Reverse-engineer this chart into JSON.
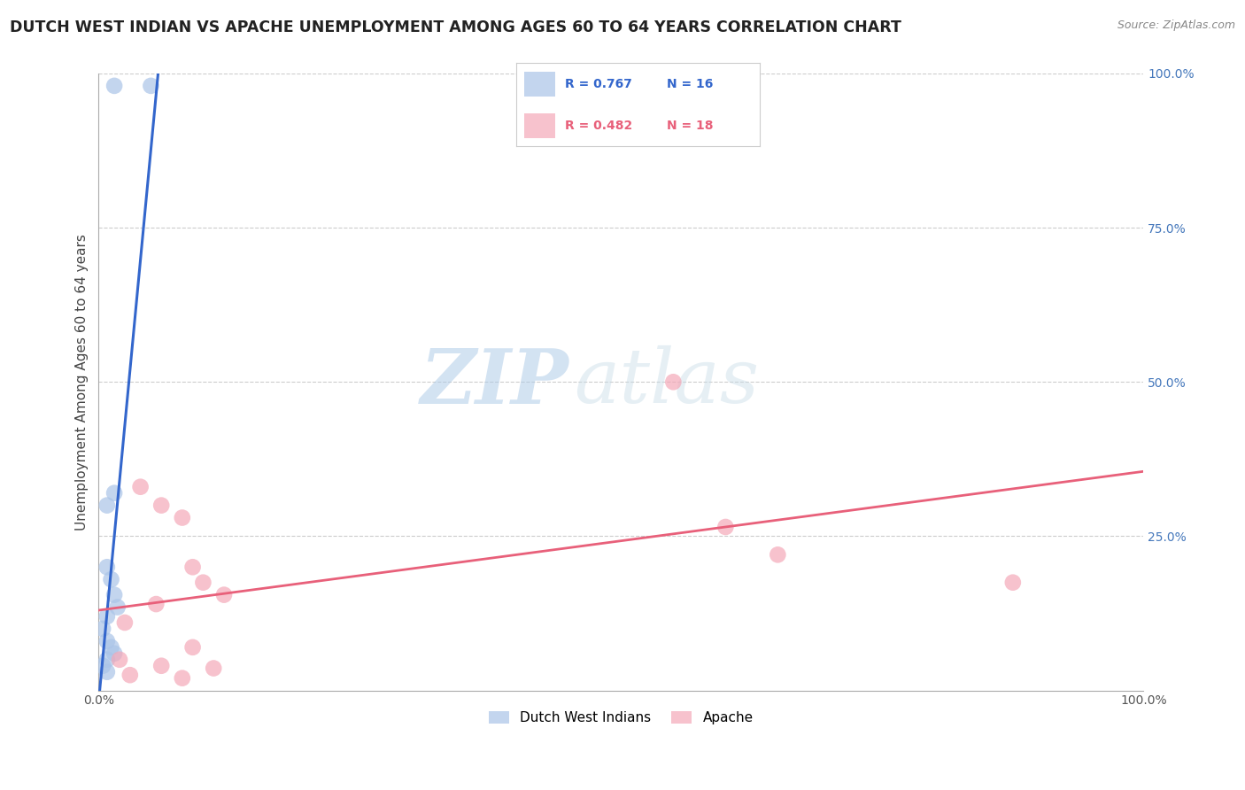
{
  "title": "DUTCH WEST INDIAN VS APACHE UNEMPLOYMENT AMONG AGES 60 TO 64 YEARS CORRELATION CHART",
  "source": "Source: ZipAtlas.com",
  "ylabel": "Unemployment Among Ages 60 to 64 years",
  "xlim": [
    0,
    1.0
  ],
  "ylim": [
    0,
    1.0
  ],
  "xticks": [
    0.0,
    0.1,
    0.2,
    0.3,
    0.4,
    0.5,
    0.6,
    0.7,
    0.8,
    0.9,
    1.0
  ],
  "yticks": [
    0.0,
    0.25,
    0.5,
    0.75,
    1.0
  ],
  "xticklabels": [
    "0.0%",
    "",
    "",
    "",
    "",
    "",
    "",
    "",
    "",
    "",
    "100.0%"
  ],
  "yticklabels": [
    "",
    "25.0%",
    "50.0%",
    "75.0%",
    "100.0%"
  ],
  "blue_R": 0.767,
  "blue_N": 16,
  "pink_R": 0.482,
  "pink_N": 18,
  "blue_label": "Dutch West Indians",
  "pink_label": "Apache",
  "background_color": "#ffffff",
  "watermark_zip": "ZIP",
  "watermark_atlas": "atlas",
  "blue_scatter_x": [
    0.015,
    0.05,
    0.015,
    0.008,
    0.008,
    0.012,
    0.015,
    0.018,
    0.008,
    0.004,
    0.008,
    0.012,
    0.015,
    0.008,
    0.004,
    0.008
  ],
  "blue_scatter_y": [
    0.98,
    0.98,
    0.32,
    0.3,
    0.2,
    0.18,
    0.155,
    0.135,
    0.12,
    0.1,
    0.08,
    0.07,
    0.06,
    0.05,
    0.04,
    0.03
  ],
  "pink_scatter_x": [
    0.04,
    0.06,
    0.08,
    0.09,
    0.1,
    0.12,
    0.055,
    0.025,
    0.09,
    0.55,
    0.6,
    0.65,
    0.875,
    0.02,
    0.06,
    0.11,
    0.03,
    0.08
  ],
  "pink_scatter_y": [
    0.33,
    0.3,
    0.28,
    0.2,
    0.175,
    0.155,
    0.14,
    0.11,
    0.07,
    0.5,
    0.265,
    0.22,
    0.175,
    0.05,
    0.04,
    0.036,
    0.025,
    0.02
  ],
  "blue_line_x": [
    0.001,
    0.058
  ],
  "blue_line_y": [
    0.0,
    1.02
  ],
  "pink_line_x": [
    0.0,
    1.0
  ],
  "pink_line_y": [
    0.13,
    0.355
  ],
  "grid_color": "#cccccc",
  "blue_color": "#aac4e8",
  "pink_color": "#f4a8b8",
  "blue_line_color": "#3366cc",
  "pink_line_color": "#e8607a",
  "marker_size": 180,
  "legend_blue_text_color": "#3366cc",
  "legend_pink_text_color": "#e8607a"
}
